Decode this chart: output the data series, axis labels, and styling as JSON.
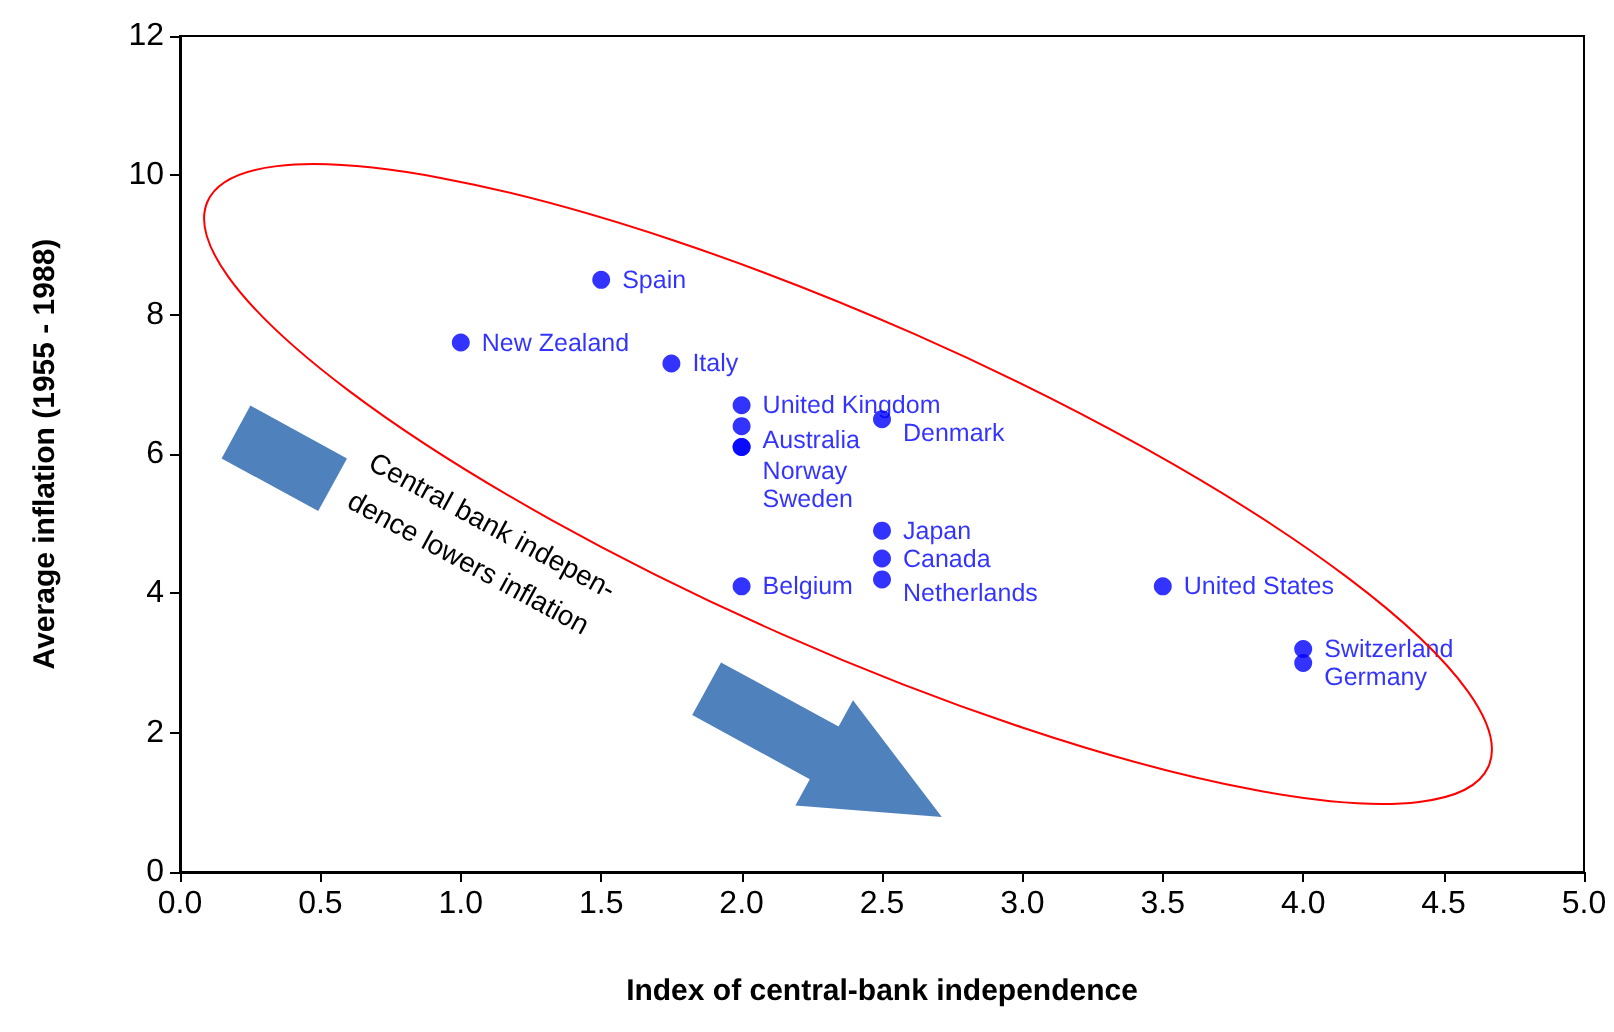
{
  "chart_data": {
    "type": "scatter",
    "xlabel": "Index of central-bank independence",
    "ylabel": "Average inflation (1955 - 1988)",
    "x": [
      1.5,
      1.0,
      1.75,
      2.0,
      2.0,
      2.5,
      2.0,
      2.0,
      2.5,
      2.5,
      2.5,
      2.0,
      3.5,
      4.0,
      4.0
    ],
    "series": [
      {
        "color": "#0000ff",
        "values": [
          8.5,
          7.6,
          7.3,
          6.7,
          6.4,
          6.5,
          6.1,
          6.1,
          4.9,
          4.5,
          4.2,
          4.1,
          4.1,
          3.2,
          3.0
        ],
        "value_labels": [
          "Spain",
          "New Zealand",
          "Italy",
          "United Kingdom",
          "Australia",
          "Denmark",
          "Norway",
          "Sweden",
          "Japan",
          "Canada",
          "Netherlands",
          "Belgium",
          "United States",
          "Switzerland",
          "Germany"
        ]
      }
    ],
    "xlim": [
      0,
      5
    ],
    "xticks": [
      {
        "value": 0,
        "label": "0.0"
      },
      {
        "value": 0.5,
        "label": "0.5"
      },
      {
        "value": 1,
        "label": "1.0"
      },
      {
        "value": 1.5,
        "label": "1.5"
      },
      {
        "value": 2,
        "label": "2.0"
      },
      {
        "value": 2.5,
        "label": "2.5"
      },
      {
        "value": 3,
        "label": "3.0"
      },
      {
        "value": 3.5,
        "label": "3.5"
      },
      {
        "value": 4,
        "label": "4.0"
      },
      {
        "value": 4.5,
        "label": "4.5"
      },
      {
        "value": 5,
        "label": "5.0"
      }
    ],
    "ylim": [
      0,
      12
    ],
    "yticks": [
      0,
      2,
      4,
      6,
      8,
      10,
      12
    ],
    "marker": "circle",
    "grid": false,
    "annotations": [
      "Central bank indepen-\ndence lowers inflation"
    ]
  }
}
